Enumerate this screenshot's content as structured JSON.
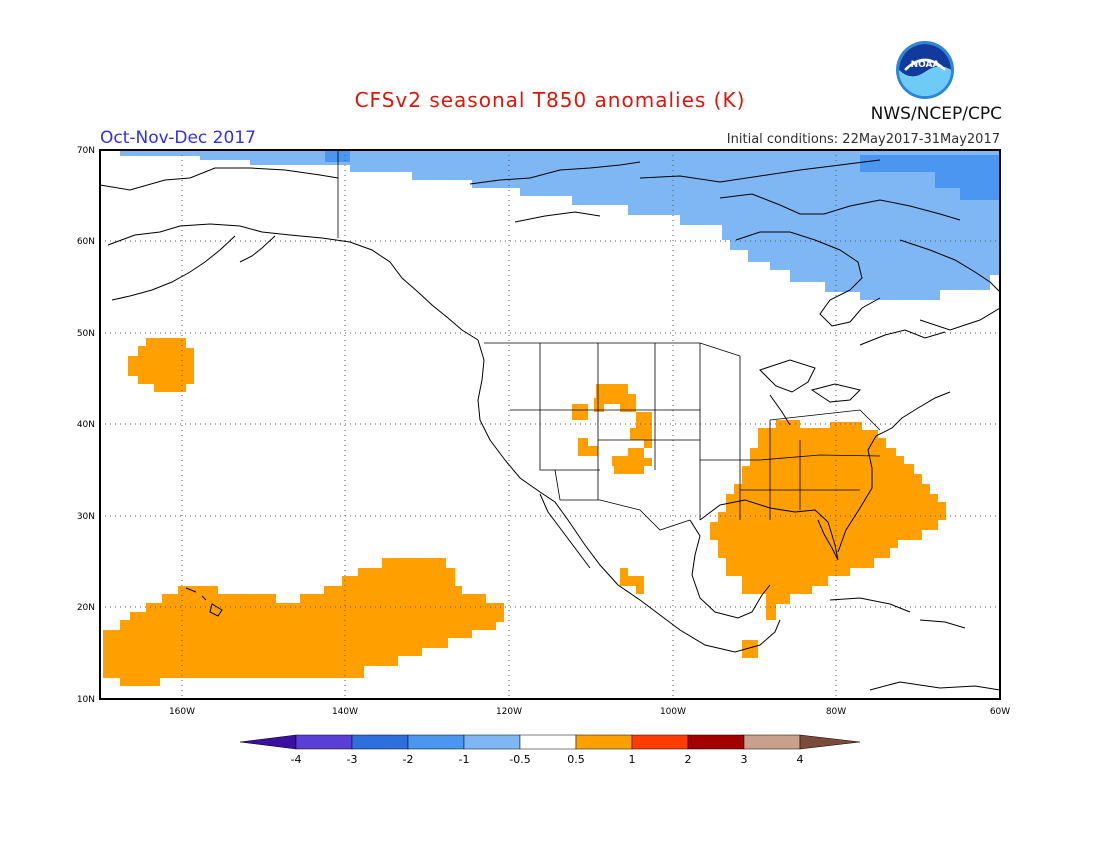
{
  "title": "CFSv2 seasonal T850 anomalies (K)",
  "season_label": "Oct-Nov-Dec 2017",
  "initial_conditions": "Initial conditions: 22May2017-31May2017",
  "agency": "NWS/NCEP/CPC",
  "logo_text": "NOAA",
  "lat_labels": [
    "70N",
    "60N",
    "50N",
    "40N",
    "30N",
    "20N",
    "10N"
  ],
  "lon_labels": [
    "160W",
    "140W",
    "120W",
    "100W",
    "80W",
    "60W"
  ],
  "legend": {
    "ticks": [
      "-4",
      "-3",
      "-2",
      "-1",
      "-0.5",
      "0.5",
      "1",
      "2",
      "3",
      "4"
    ],
    "colors": {
      "below_minus4": "#3b0fa0",
      "minus4_minus3": "#5a3fd6",
      "minus3_minus2": "#2d6fdc",
      "minus2_minus1": "#4b96f0",
      "minus1_minus05": "#7fb7f5",
      "minus05_05": "#ffffff",
      "p05_1": "#ffa000",
      "p1_2": "#ff3c00",
      "p2_3": "#a50000",
      "p3_4": "#c8a08c",
      "above_4": "#7a4a3a"
    }
  },
  "map_extent": {
    "lon_min": -170,
    "lon_max": -60,
    "lat_min": 10,
    "lat_max": 70
  }
}
